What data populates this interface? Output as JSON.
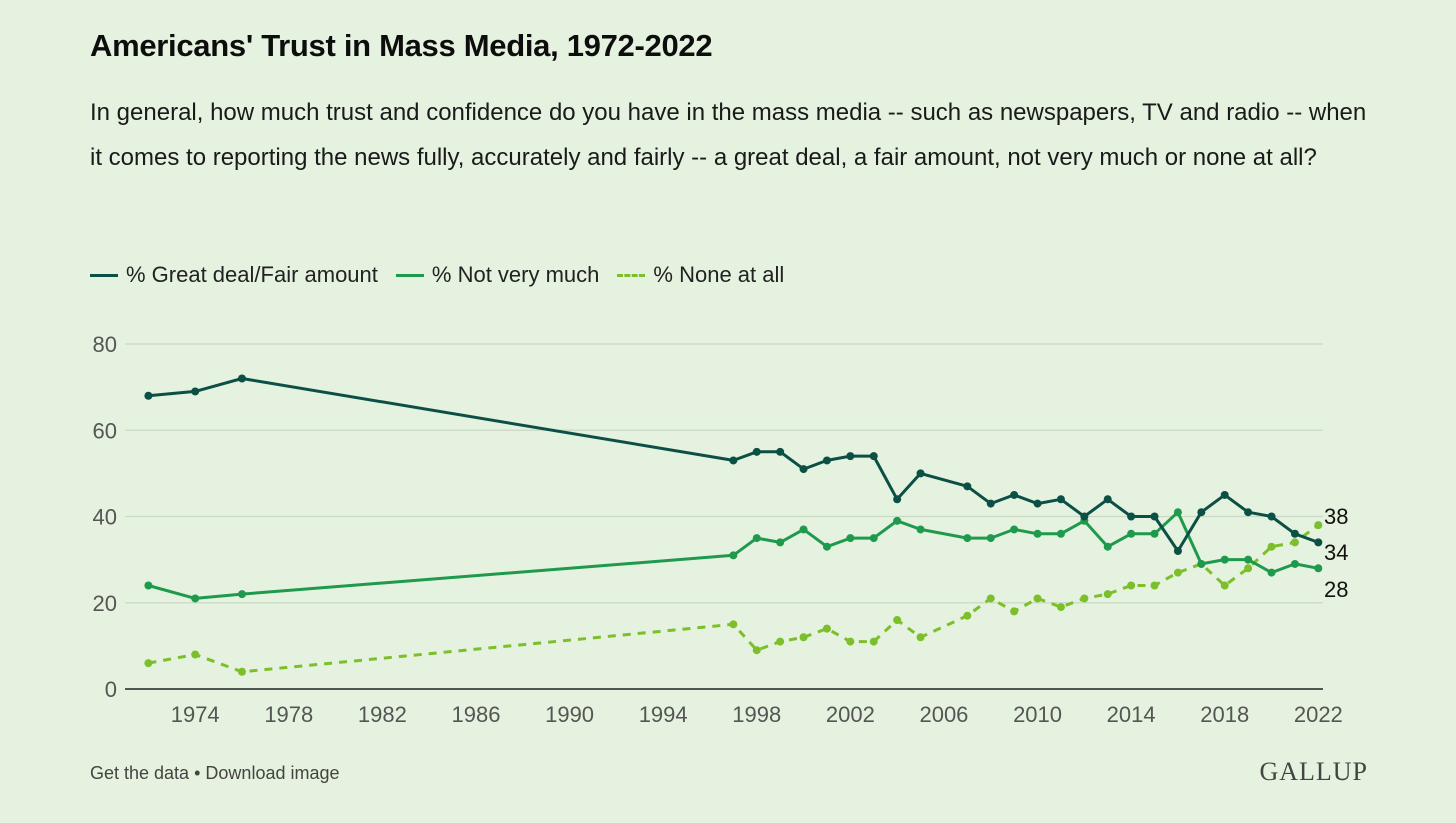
{
  "title": "Americans' Trust in Mass Media, 1972-2022",
  "subtitle": "In general, how much trust and confidence do you have in the mass media -- such as newspapers, TV and radio -- when it comes to reporting the news fully, accurately and fairly -- a great deal, a fair amount, not very much or none at all?",
  "legend": {
    "great": "% Great deal/Fair amount",
    "notmuch": "% Not very much",
    "none": "% None at all"
  },
  "footer": {
    "get_data": "Get the data",
    "separator": "•",
    "download": "Download image"
  },
  "logo": "GALLUP",
  "colors": {
    "great": "#0b4f45",
    "notmuch": "#1f9a4c",
    "none": "#7cbf2a",
    "grid": "#c9d9c4",
    "axis": "#222222",
    "tick_text": "#555555"
  },
  "chart_data": {
    "type": "line",
    "xlim": [
      1971,
      2022
    ],
    "ylim": [
      0,
      80
    ],
    "y_ticks": [
      0,
      20,
      40,
      60,
      80
    ],
    "x_ticks": [
      1974,
      1978,
      1982,
      1986,
      1990,
      1994,
      1998,
      2002,
      2006,
      2010,
      2014,
      2018,
      2022
    ],
    "grid": true,
    "legend_position": "top-left",
    "series": [
      {
        "name": "% Great deal/Fair amount",
        "style": "solid",
        "end_label": "34",
        "points": [
          [
            1972,
            68
          ],
          [
            1974,
            69
          ],
          [
            1976,
            72
          ],
          [
            1997,
            53
          ],
          [
            1998,
            55
          ],
          [
            1999,
            55
          ],
          [
            2000,
            51
          ],
          [
            2001,
            53
          ],
          [
            2002,
            54
          ],
          [
            2003,
            54
          ],
          [
            2004,
            44
          ],
          [
            2005,
            50
          ],
          [
            2007,
            47
          ],
          [
            2008,
            43
          ],
          [
            2009,
            45
          ],
          [
            2010,
            43
          ],
          [
            2011,
            44
          ],
          [
            2012,
            40
          ],
          [
            2013,
            44
          ],
          [
            2014,
            40
          ],
          [
            2015,
            40
          ],
          [
            2016,
            32
          ],
          [
            2017,
            41
          ],
          [
            2018,
            45
          ],
          [
            2019,
            41
          ],
          [
            2020,
            40
          ],
          [
            2021,
            36
          ],
          [
            2022,
            34
          ]
        ]
      },
      {
        "name": "% Not very much",
        "style": "solid",
        "end_label": "28",
        "points": [
          [
            1972,
            24
          ],
          [
            1974,
            21
          ],
          [
            1976,
            22
          ],
          [
            1997,
            31
          ],
          [
            1998,
            35
          ],
          [
            1999,
            34
          ],
          [
            2000,
            37
          ],
          [
            2001,
            33
          ],
          [
            2002,
            35
          ],
          [
            2003,
            35
          ],
          [
            2004,
            39
          ],
          [
            2005,
            37
          ],
          [
            2007,
            35
          ],
          [
            2008,
            35
          ],
          [
            2009,
            37
          ],
          [
            2010,
            36
          ],
          [
            2011,
            36
          ],
          [
            2012,
            39
          ],
          [
            2013,
            33
          ],
          [
            2014,
            36
          ],
          [
            2015,
            36
          ],
          [
            2016,
            41
          ],
          [
            2017,
            29
          ],
          [
            2018,
            30
          ],
          [
            2019,
            30
          ],
          [
            2020,
            27
          ],
          [
            2021,
            29
          ],
          [
            2022,
            28
          ]
        ]
      },
      {
        "name": "% None at all",
        "style": "dashed",
        "end_label": "38",
        "points": [
          [
            1972,
            6
          ],
          [
            1974,
            8
          ],
          [
            1976,
            4
          ],
          [
            1997,
            15
          ],
          [
            1998,
            9
          ],
          [
            1999,
            11
          ],
          [
            2000,
            12
          ],
          [
            2001,
            14
          ],
          [
            2002,
            11
          ],
          [
            2003,
            11
          ],
          [
            2004,
            16
          ],
          [
            2005,
            12
          ],
          [
            2007,
            17
          ],
          [
            2008,
            21
          ],
          [
            2009,
            18
          ],
          [
            2010,
            21
          ],
          [
            2011,
            19
          ],
          [
            2012,
            21
          ],
          [
            2013,
            22
          ],
          [
            2014,
            24
          ],
          [
            2015,
            24
          ],
          [
            2016,
            27
          ],
          [
            2017,
            29
          ],
          [
            2018,
            24
          ],
          [
            2019,
            28
          ],
          [
            2020,
            33
          ],
          [
            2021,
            34
          ],
          [
            2022,
            38
          ]
        ]
      }
    ]
  }
}
